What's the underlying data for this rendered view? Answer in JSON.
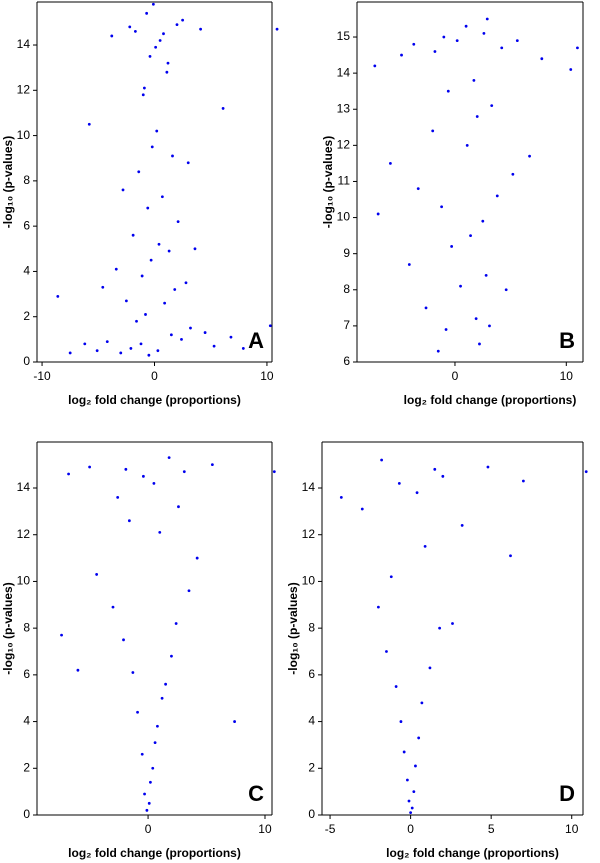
{
  "chart_data": [
    {
      "type": "scatter",
      "label": "A",
      "x_label": "log₂ fold change (proportions)",
      "y_label": "-log₁₀ (p-values)",
      "color": "#0000ee",
      "xlim": [
        -10.45,
        10.45
      ],
      "ylim": [
        0,
        15.9
      ],
      "xticks": [
        -10,
        0,
        10
      ],
      "yticks": [
        0,
        2,
        4,
        6,
        8,
        10,
        12,
        14
      ],
      "x": [
        -0.5,
        0.3,
        -1.2,
        1.5,
        -2.1,
        2.4,
        -3.0,
        3.2,
        -0.8,
        0.9,
        -1.6,
        1.8,
        -4.2,
        4.5,
        -5.1,
        5.3,
        -6.2,
        6.8,
        -7.5,
        7.9,
        -0.3,
        0.4,
        -1.1,
        1.3,
        -2.5,
        2.8,
        -0.6,
        0.7,
        -1.9,
        2.1,
        -3.4,
        3.6,
        -0.2,
        0.2,
        -1.4,
        1.6,
        -2.8,
        3.0,
        -8.6,
        10.3,
        -0.9,
        1.1,
        -0.4,
        0.5,
        -1.7,
        2.0,
        -3.8,
        4.1,
        -0.1,
        0.1,
        -5.8,
        6.1,
        -1.0,
        1.2,
        -2.2,
        2.5,
        -0.7,
        0.8,
        10.9,
        -4.6
      ],
      "y": [
        0.3,
        0.5,
        0.8,
        1.2,
        0.6,
        1.0,
        0.4,
        1.5,
        2.1,
        2.6,
        1.8,
        3.2,
        0.9,
        1.3,
        0.5,
        0.7,
        0.8,
        1.1,
        0.4,
        0.6,
        4.5,
        5.2,
        3.8,
        4.9,
        2.7,
        3.5,
        6.8,
        7.3,
        5.6,
        6.2,
        4.1,
        5.0,
        9.5,
        10.2,
        8.4,
        9.1,
        7.6,
        8.8,
        2.9,
        1.6,
        12.1,
        12.8,
        13.5,
        14.2,
        14.6,
        14.9,
        14.4,
        14.7,
        15.8,
        13.9,
        10.5,
        11.2,
        11.8,
        13.2,
        14.8,
        15.1,
        15.4,
        14.5,
        14.7,
        3.3
      ]
    },
    {
      "type": "scatter",
      "label": "B",
      "x_label": "log₂ fold change (proportions)",
      "y_label": "-log₁₀ (p-values)",
      "color": "#0000ee",
      "xlim": [
        -8.8,
        11.5
      ],
      "ylim": [
        6,
        15.97
      ],
      "xticks": [
        0,
        10
      ],
      "yticks": [
        6,
        7,
        8,
        9,
        10,
        11,
        12,
        13,
        14,
        15
      ],
      "x": [
        -1.5,
        2.2,
        -0.8,
        1.9,
        3.1,
        -2.6,
        0.5,
        2.8,
        -4.1,
        4.6,
        -0.3,
        1.4,
        2.5,
        -1.2,
        3.8,
        -3.3,
        5.2,
        -5.8,
        6.7,
        -6.9,
        1.1,
        -2.0,
        2.0,
        3.3,
        -0.6,
        1.7,
        -7.2,
        7.8,
        10.4,
        -1.8,
        0.2,
        2.6,
        -3.7,
        4.2,
        1.0,
        -1.0,
        2.9,
        -4.8,
        5.6,
        11.0
      ],
      "y": [
        6.3,
        6.5,
        6.9,
        7.2,
        7.0,
        7.5,
        8.1,
        8.4,
        8.7,
        8.0,
        9.2,
        9.5,
        9.9,
        10.3,
        10.6,
        10.8,
        11.2,
        11.5,
        11.7,
        10.1,
        12.0,
        12.4,
        12.8,
        13.1,
        13.5,
        13.8,
        14.2,
        14.4,
        14.1,
        14.6,
        14.9,
        15.1,
        14.8,
        14.7,
        15.3,
        15.0,
        15.5,
        14.5,
        14.9,
        14.7
      ]
    },
    {
      "type": "scatter",
      "label": "C",
      "x_label": "log₂ fold change (proportions)",
      "y_label": "-log₁₀ (p-values)",
      "color": "#0000ee",
      "xlim": [
        -9.5,
        10.6
      ],
      "ylim": [
        0,
        15.97
      ],
      "xticks": [
        0,
        10
      ],
      "yticks": [
        0,
        2,
        4,
        6,
        8,
        10,
        12,
        14
      ],
      "x": [
        -0.1,
        0.1,
        -0.3,
        0.2,
        0.4,
        -0.5,
        0.6,
        0.8,
        -0.9,
        1.2,
        1.5,
        -1.3,
        2.0,
        -2.1,
        2.4,
        -3.0,
        3.5,
        -4.4,
        4.2,
        -6.0,
        7.4,
        -7.4,
        1.0,
        -1.6,
        2.6,
        -2.6,
        0.5,
        -0.4,
        3.1,
        -5.0,
        5.5,
        -6.8,
        1.8,
        -1.9,
        10.8
      ],
      "y": [
        0.2,
        0.5,
        0.9,
        1.4,
        2.0,
        2.6,
        3.1,
        3.8,
        4.4,
        5.0,
        5.6,
        6.1,
        6.8,
        7.5,
        8.2,
        8.9,
        9.6,
        10.3,
        11.0,
        6.2,
        4.0,
        7.7,
        12.1,
        12.6,
        13.2,
        13.6,
        14.2,
        14.5,
        14.7,
        14.9,
        15.0,
        14.6,
        15.3,
        14.8,
        14.7
      ]
    },
    {
      "type": "scatter",
      "label": "D",
      "x_label": "log₂ fold change (proportions)",
      "y_label": "-log₁₀ (p-values)",
      "color": "#0000ee",
      "xlim": [
        -5.5,
        10.7
      ],
      "ylim": [
        0,
        15.97
      ],
      "xticks": [
        -5,
        0,
        5,
        10
      ],
      "yticks": [
        0,
        2,
        4,
        6,
        8,
        10,
        12,
        14
      ],
      "x": [
        0.0,
        0.1,
        -0.1,
        0.2,
        -0.2,
        0.3,
        -0.4,
        0.5,
        -0.6,
        0.7,
        -0.9,
        1.2,
        -1.5,
        1.8,
        -2.0,
        2.6,
        -1.2,
        0.9,
        3.2,
        6.2,
        -3.0,
        0.4,
        -0.7,
        2.0,
        -4.3,
        4.8,
        7.0,
        -1.8,
        1.5,
        10.9
      ],
      "y": [
        0.1,
        0.3,
        0.6,
        1.0,
        1.5,
        2.1,
        2.7,
        3.3,
        4.0,
        4.8,
        5.5,
        6.3,
        7.0,
        8.0,
        8.9,
        8.2,
        10.2,
        11.5,
        12.4,
        11.1,
        13.1,
        13.8,
        14.2,
        14.5,
        13.6,
        14.9,
        14.3,
        15.2,
        14.8,
        14.7
      ]
    }
  ]
}
